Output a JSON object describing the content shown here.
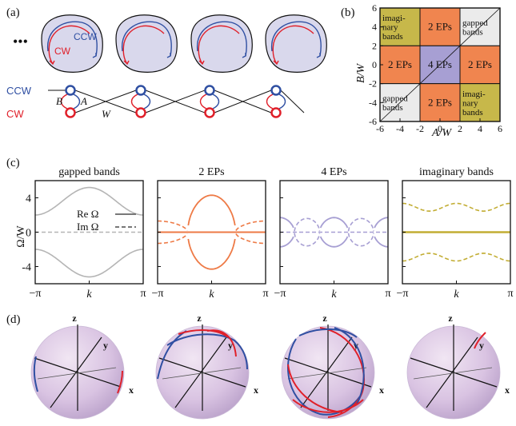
{
  "panels": {
    "a": {
      "label": "(a)",
      "ellipsis": "•••",
      "ccw": "CCW",
      "cw": "CW",
      "coupling_B": "B",
      "coupling_A": "A",
      "coupling_W": "W",
      "resonator_count": 4,
      "colors": {
        "ccw": "#2f4fa2",
        "cw": "#e0202a",
        "disk": "#d9d8ec"
      }
    },
    "b": {
      "label": "(b)",
      "xlabel": "A/W",
      "ylabel": "B/W",
      "x_ticks": [
        "-6",
        "-4",
        "-2",
        "0",
        "2",
        "4",
        "6"
      ],
      "y_ticks": [
        "6",
        "4",
        "2",
        "0",
        "-2",
        "-4",
        "-6"
      ],
      "regions": {
        "top_left": [
          "imagi-",
          "nary",
          "bands"
        ],
        "top_mid": [
          "2 EPs"
        ],
        "top_right": [
          "gapped",
          "bands"
        ],
        "mid_left": [
          "2 EPs"
        ],
        "center": [
          "4 EPs"
        ],
        "mid_right": [
          "2 EPs"
        ],
        "bot_left": [
          "gapped",
          "bands"
        ],
        "bot_mid": [
          "2 EPs"
        ],
        "bot_right": [
          "imagi-",
          "nary",
          "bands"
        ]
      },
      "colors": {
        "imaginary": "#c7b84a",
        "two_eps": "#f0854f",
        "four_eps": "#a79fd3",
        "gapped": "#ebebeb"
      }
    },
    "c": {
      "label": "(c)",
      "ylabel": "Ω/W",
      "xlabel": "k",
      "y_ticks": [
        "4",
        "0",
        "-4"
      ],
      "x_ticks": [
        "−π",
        "π"
      ],
      "legend_re": "Re Ω",
      "legend_im": "Im Ω",
      "subplots": [
        {
          "title": "gapped bands",
          "color": "#b5b5b5"
        },
        {
          "title": "2 EPs",
          "color": "#ee7a46"
        },
        {
          "title": "4 EPs",
          "color": "#a79fd3"
        },
        {
          "title": "imaginary bands",
          "color": "#c2ad33"
        }
      ]
    },
    "d": {
      "label": "(d)",
      "axis_x": "x",
      "axis_y": "y",
      "axis_z": "z",
      "sphere_count": 4
    }
  }
}
